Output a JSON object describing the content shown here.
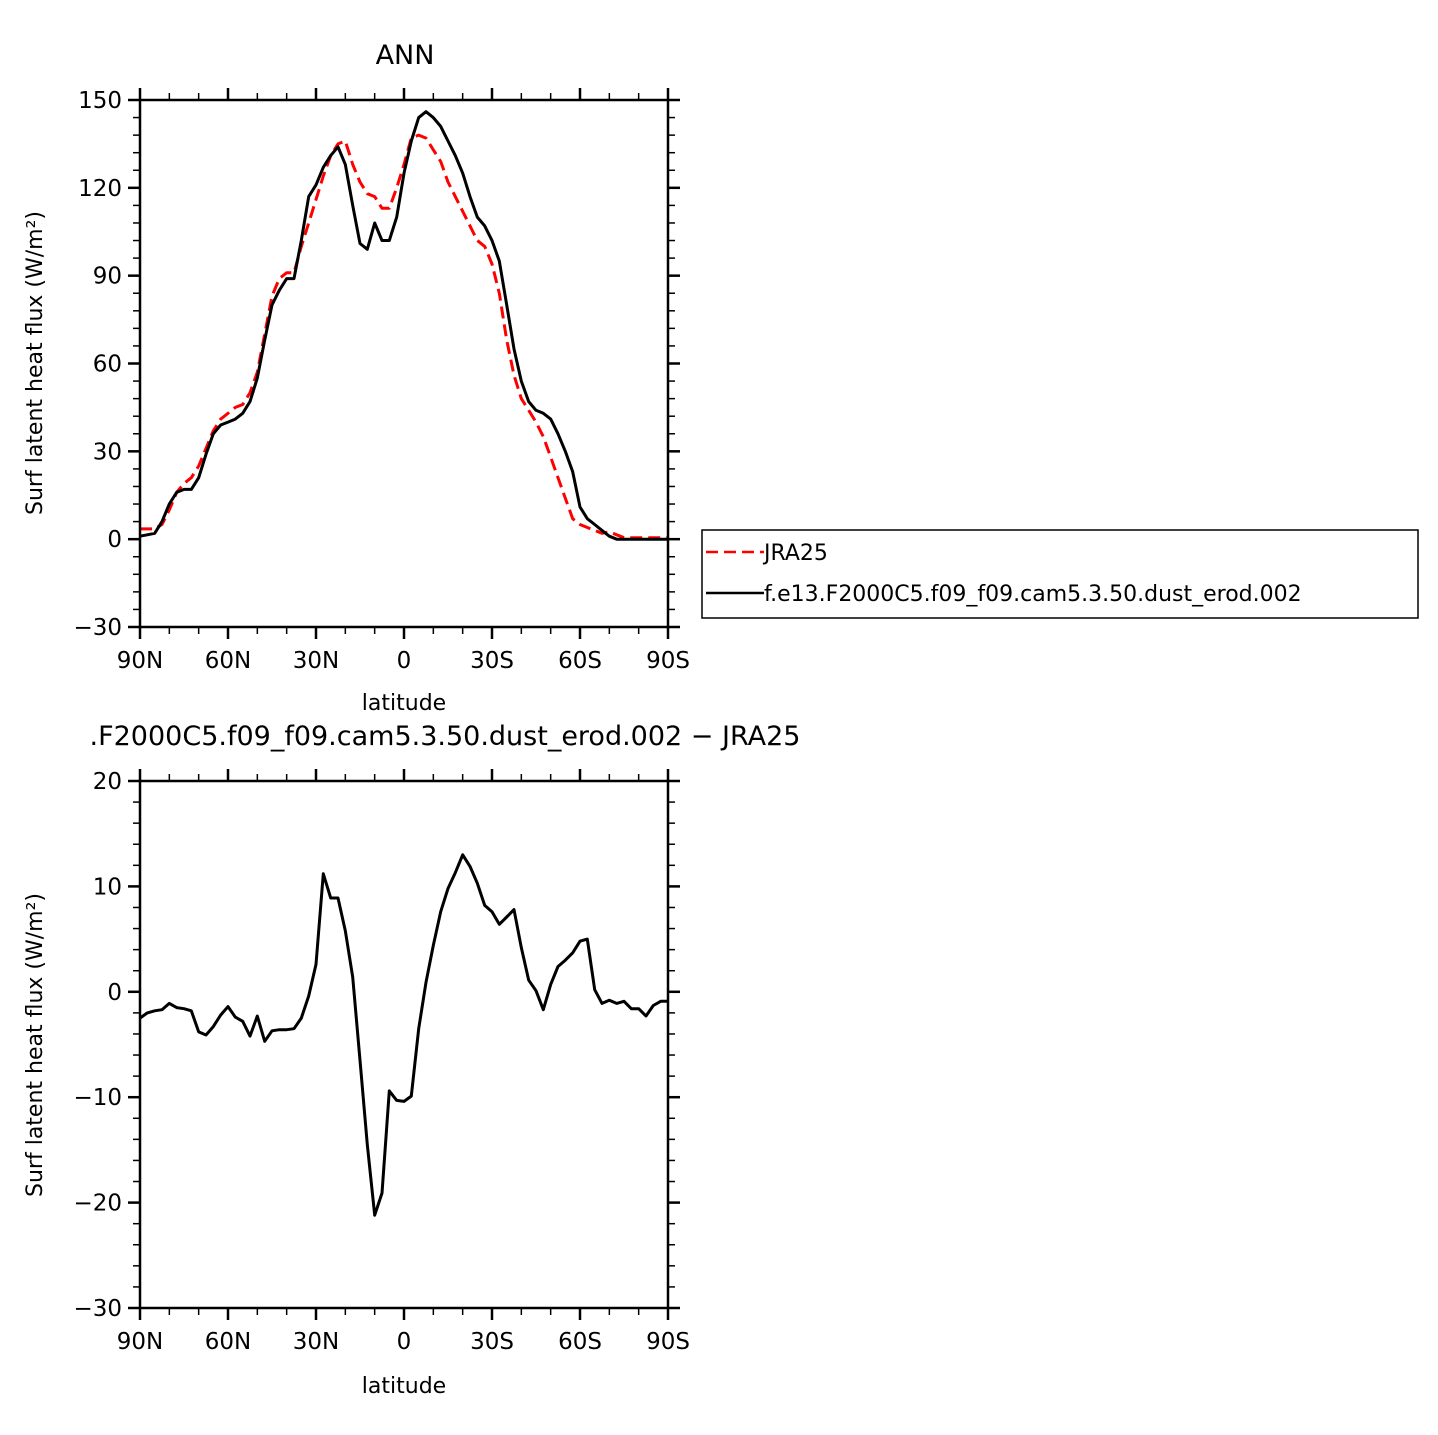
{
  "chart_data": [
    {
      "type": "line",
      "title": "ANN",
      "xlabel": "latitude",
      "ylabel": "Surf latent heat flux (W/m²)",
      "ylim": [
        -30,
        150
      ],
      "xlim": [
        90,
        -90
      ],
      "xticks": [
        {
          "value": 90,
          "label": "90N"
        },
        {
          "value": 60,
          "label": "60N"
        },
        {
          "value": 30,
          "label": "30N"
        },
        {
          "value": 0,
          "label": "0"
        },
        {
          "value": -30,
          "label": "30S"
        },
        {
          "value": -60,
          "label": "60S"
        },
        {
          "value": -90,
          "label": "90S"
        }
      ],
      "yticks": [
        {
          "value": 150,
          "label": "150"
        },
        {
          "value": 120,
          "label": "120"
        },
        {
          "value": 90,
          "label": "90"
        },
        {
          "value": 60,
          "label": "60"
        },
        {
          "value": 30,
          "label": "30"
        },
        {
          "value": 0,
          "label": "0"
        },
        {
          "value": -30,
          "label": "−30"
        }
      ],
      "legend": "right",
      "series": [
        {
          "name": "JRA25",
          "color": "#ff0000",
          "dash": "dashed",
          "x": [
            90,
            87.5,
            85,
            82.5,
            80,
            77.5,
            75,
            72.5,
            70,
            67.5,
            65,
            62.5,
            60,
            57.5,
            55,
            52.5,
            50,
            47.5,
            45,
            42.5,
            40,
            37.5,
            35,
            32.5,
            30,
            27.5,
            25,
            22.5,
            20,
            17.5,
            15,
            12.5,
            10,
            7.5,
            5,
            2.5,
            0,
            -2.5,
            -5,
            -7.5,
            -10,
            -12.5,
            -15,
            -17.5,
            -20,
            -22.5,
            -25,
            -27.5,
            -30,
            -32.5,
            -35,
            -37.5,
            -40,
            -42.5,
            -45,
            -47.5,
            -50,
            -52.5,
            -55,
            -57.5,
            -60,
            -62.5,
            -65,
            -67.5,
            -70,
            -72.5,
            -75,
            -77.5,
            -80,
            -82.5,
            -85,
            -87.5,
            -90
          ],
          "y": [
            3.5,
            3.5,
            3.5,
            5,
            10,
            16,
            19,
            21,
            25,
            31,
            37,
            41,
            43,
            45,
            46,
            50,
            57,
            70,
            83,
            89,
            91,
            91,
            100,
            108,
            116,
            124,
            131,
            135,
            136,
            128,
            122,
            118,
            117,
            113,
            113,
            120,
            128,
            137,
            138,
            137,
            133,
            129,
            122,
            117,
            112,
            107,
            102,
            100,
            94,
            84,
            68,
            56,
            48,
            44,
            40,
            35,
            28,
            21,
            14,
            7,
            5,
            4,
            3,
            2,
            2.5,
            1.5,
            0.5,
            0.5,
            0.5,
            0.5,
            0.5,
            0.5,
            0.5
          ]
        },
        {
          "name": "f.e13.F2000C5.f09_f09.cam5.3.50.dust_erod.002",
          "color": "#000000",
          "dash": "solid",
          "x": [
            90,
            87.5,
            85,
            82.5,
            80,
            77.5,
            75,
            72.5,
            70,
            67.5,
            65,
            62.5,
            60,
            57.5,
            55,
            52.5,
            50,
            47.5,
            45,
            42.5,
            40,
            37.5,
            35,
            32.5,
            30,
            27.5,
            25,
            22.5,
            20,
            17.5,
            15,
            12.5,
            10,
            7.5,
            5,
            2.5,
            0,
            -2.5,
            -5,
            -7.5,
            -10,
            -12.5,
            -15,
            -17.5,
            -20,
            -22.5,
            -25,
            -27.5,
            -30,
            -32.5,
            -35,
            -37.5,
            -40,
            -42.5,
            -45,
            -47.5,
            -50,
            -52.5,
            -55,
            -57.5,
            -60,
            -62.5,
            -65,
            -67.5,
            -70,
            -72.5,
            -75,
            -77.5,
            -80,
            -82.5,
            -85,
            -87.5,
            -90
          ],
          "y": [
            1,
            1.5,
            2,
            6,
            12,
            16,
            17,
            17,
            21,
            29,
            36,
            39,
            40,
            41,
            43,
            47,
            55,
            68,
            80,
            85,
            89,
            89,
            102,
            117,
            121,
            127,
            131,
            134,
            128,
            114,
            101,
            99,
            108,
            102,
            102,
            110,
            125,
            136,
            144,
            146,
            144,
            141,
            136,
            131,
            125,
            117,
            110,
            107,
            102,
            95,
            80,
            65,
            54,
            47,
            44,
            43,
            41,
            36,
            30,
            23,
            11,
            7,
            5,
            3,
            1,
            0,
            0,
            0,
            0,
            0,
            0,
            0,
            0
          ]
        }
      ]
    },
    {
      "type": "line",
      "title": ".F2000C5.f09_f09.cam5.3.50.dust_erod.002 − JRA25",
      "xlabel": "latitude",
      "ylabel": "Surf latent heat flux (W/m²)",
      "ylim": [
        -30,
        20
      ],
      "xlim": [
        90,
        -90
      ],
      "xticks": [
        {
          "value": 90,
          "label": "90N"
        },
        {
          "value": 60,
          "label": "60N"
        },
        {
          "value": 30,
          "label": "30N"
        },
        {
          "value": 0,
          "label": "0"
        },
        {
          "value": -30,
          "label": "30S"
        },
        {
          "value": -60,
          "label": "60S"
        },
        {
          "value": -90,
          "label": "90S"
        }
      ],
      "yticks": [
        {
          "value": 20,
          "label": "20"
        },
        {
          "value": 10,
          "label": "10"
        },
        {
          "value": 0,
          "label": "0"
        },
        {
          "value": -10,
          "label": "−10"
        },
        {
          "value": -20,
          "label": "−20"
        },
        {
          "value": -30,
          "label": "−30"
        }
      ],
      "series": [
        {
          "color": "#000000",
          "dash": "solid",
          "x": [
            90,
            87.5,
            85,
            82.5,
            80,
            77.5,
            75,
            72.5,
            70,
            67.5,
            65,
            62.5,
            60,
            57.5,
            55,
            52.5,
            50,
            47.5,
            45,
            42.5,
            40,
            37.5,
            35,
            32.5,
            30,
            27.5,
            25,
            22.5,
            20,
            17.5,
            15,
            12.5,
            10,
            7.5,
            5,
            2.5,
            0,
            -2.5,
            -5,
            -7.5,
            -10,
            -12.5,
            -15,
            -17.5,
            -20,
            -22.5,
            -25,
            -27.5,
            -30,
            -32.5,
            -35,
            -37.5,
            -40,
            -42.5,
            -45,
            -47.5,
            -50,
            -52.5,
            -55,
            -57.5,
            -60,
            -62.5,
            -65,
            -67.5,
            -70,
            -72.5,
            -75,
            -77.5,
            -80,
            -82.5,
            -85,
            -87.5,
            -90
          ],
          "y": [
            -2.5,
            -2,
            -1.8,
            -1.7,
            -1.1,
            -1.5,
            -1.6,
            -1.8,
            -3.8,
            -4.1,
            -3.3,
            -2.2,
            -1.4,
            -2.4,
            -2.8,
            -4.2,
            -2.3,
            -4.7,
            -3.7,
            -3.6,
            -3.6,
            -3.5,
            -2.5,
            -0.4,
            2.6,
            11.2,
            8.9,
            8.9,
            5.8,
            1.4,
            -6.5,
            -14.5,
            -21.2,
            -19.1,
            -9.4,
            -10.3,
            -10.4,
            -9.9,
            -3.5,
            0.9,
            4.4,
            7.6,
            9.8,
            11.3,
            13,
            11.9,
            10.3,
            8.2,
            7.6,
            6.4,
            7.1,
            7.8,
            4.2,
            1.1,
            0.1,
            -1.7,
            0.7,
            2.4,
            3.0,
            3.7,
            4.8,
            5.0,
            0.2,
            -1.1,
            -0.8,
            -1.1,
            -0.9,
            -1.6,
            -1.6,
            -2.3,
            -1.3,
            -0.9,
            -0.9
          ]
        }
      ]
    }
  ]
}
